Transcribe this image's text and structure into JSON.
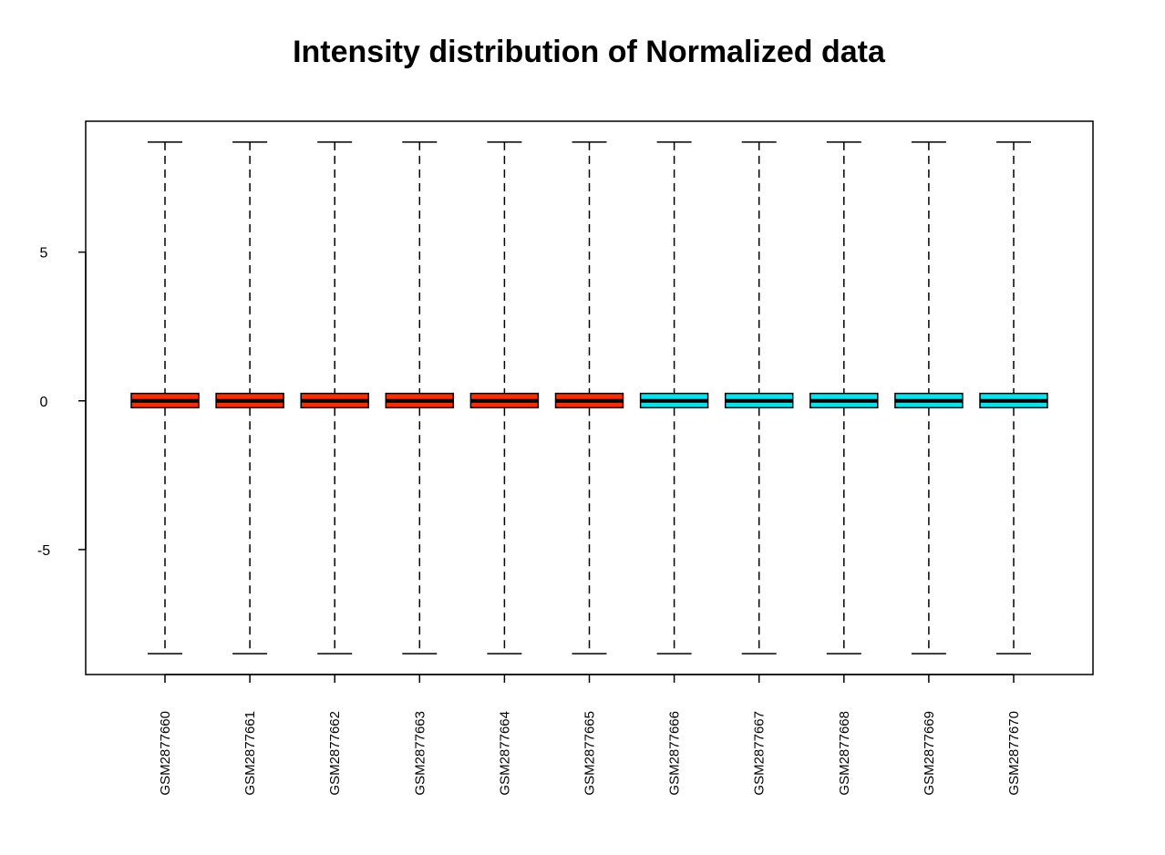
{
  "chart_data": {
    "type": "boxplot",
    "title": "Intensity distribution of Normalized data",
    "xlabel": "",
    "ylabel": "",
    "ylim": [
      -9.2,
      9.4
    ],
    "yticks": [
      -5,
      0,
      5
    ],
    "grid": false,
    "legend": "none",
    "categories": [
      "GSM2877660",
      "GSM2877661",
      "GSM2877662",
      "GSM2877663",
      "GSM2877664",
      "GSM2877665",
      "GSM2877666",
      "GSM2877667",
      "GSM2877668",
      "GSM2877669",
      "GSM2877670"
    ],
    "colors": [
      "#ff2a00",
      "#ff2a00",
      "#ff2a00",
      "#ff2a00",
      "#ff2a00",
      "#ff2a00",
      "#00e5ee",
      "#00e5ee",
      "#00e5ee",
      "#00e5ee",
      "#00e5ee"
    ],
    "boxes": [
      {
        "min": -8.5,
        "q1": -0.23,
        "median": 0.0,
        "q3": 0.25,
        "max": 8.7
      },
      {
        "min": -8.5,
        "q1": -0.23,
        "median": 0.0,
        "q3": 0.25,
        "max": 8.7
      },
      {
        "min": -8.5,
        "q1": -0.23,
        "median": 0.0,
        "q3": 0.25,
        "max": 8.7
      },
      {
        "min": -8.5,
        "q1": -0.23,
        "median": 0.0,
        "q3": 0.25,
        "max": 8.7
      },
      {
        "min": -8.5,
        "q1": -0.23,
        "median": 0.0,
        "q3": 0.25,
        "max": 8.7
      },
      {
        "min": -8.5,
        "q1": -0.23,
        "median": 0.0,
        "q3": 0.25,
        "max": 8.7
      },
      {
        "min": -8.5,
        "q1": -0.23,
        "median": 0.0,
        "q3": 0.25,
        "max": 8.7
      },
      {
        "min": -8.5,
        "q1": -0.23,
        "median": 0.0,
        "q3": 0.25,
        "max": 8.7
      },
      {
        "min": -8.5,
        "q1": -0.23,
        "median": 0.0,
        "q3": 0.25,
        "max": 8.7
      },
      {
        "min": -8.5,
        "q1": -0.23,
        "median": 0.0,
        "q3": 0.25,
        "max": 8.7
      },
      {
        "min": -8.5,
        "q1": -0.23,
        "median": 0.0,
        "q3": 0.25,
        "max": 8.7
      }
    ]
  }
}
